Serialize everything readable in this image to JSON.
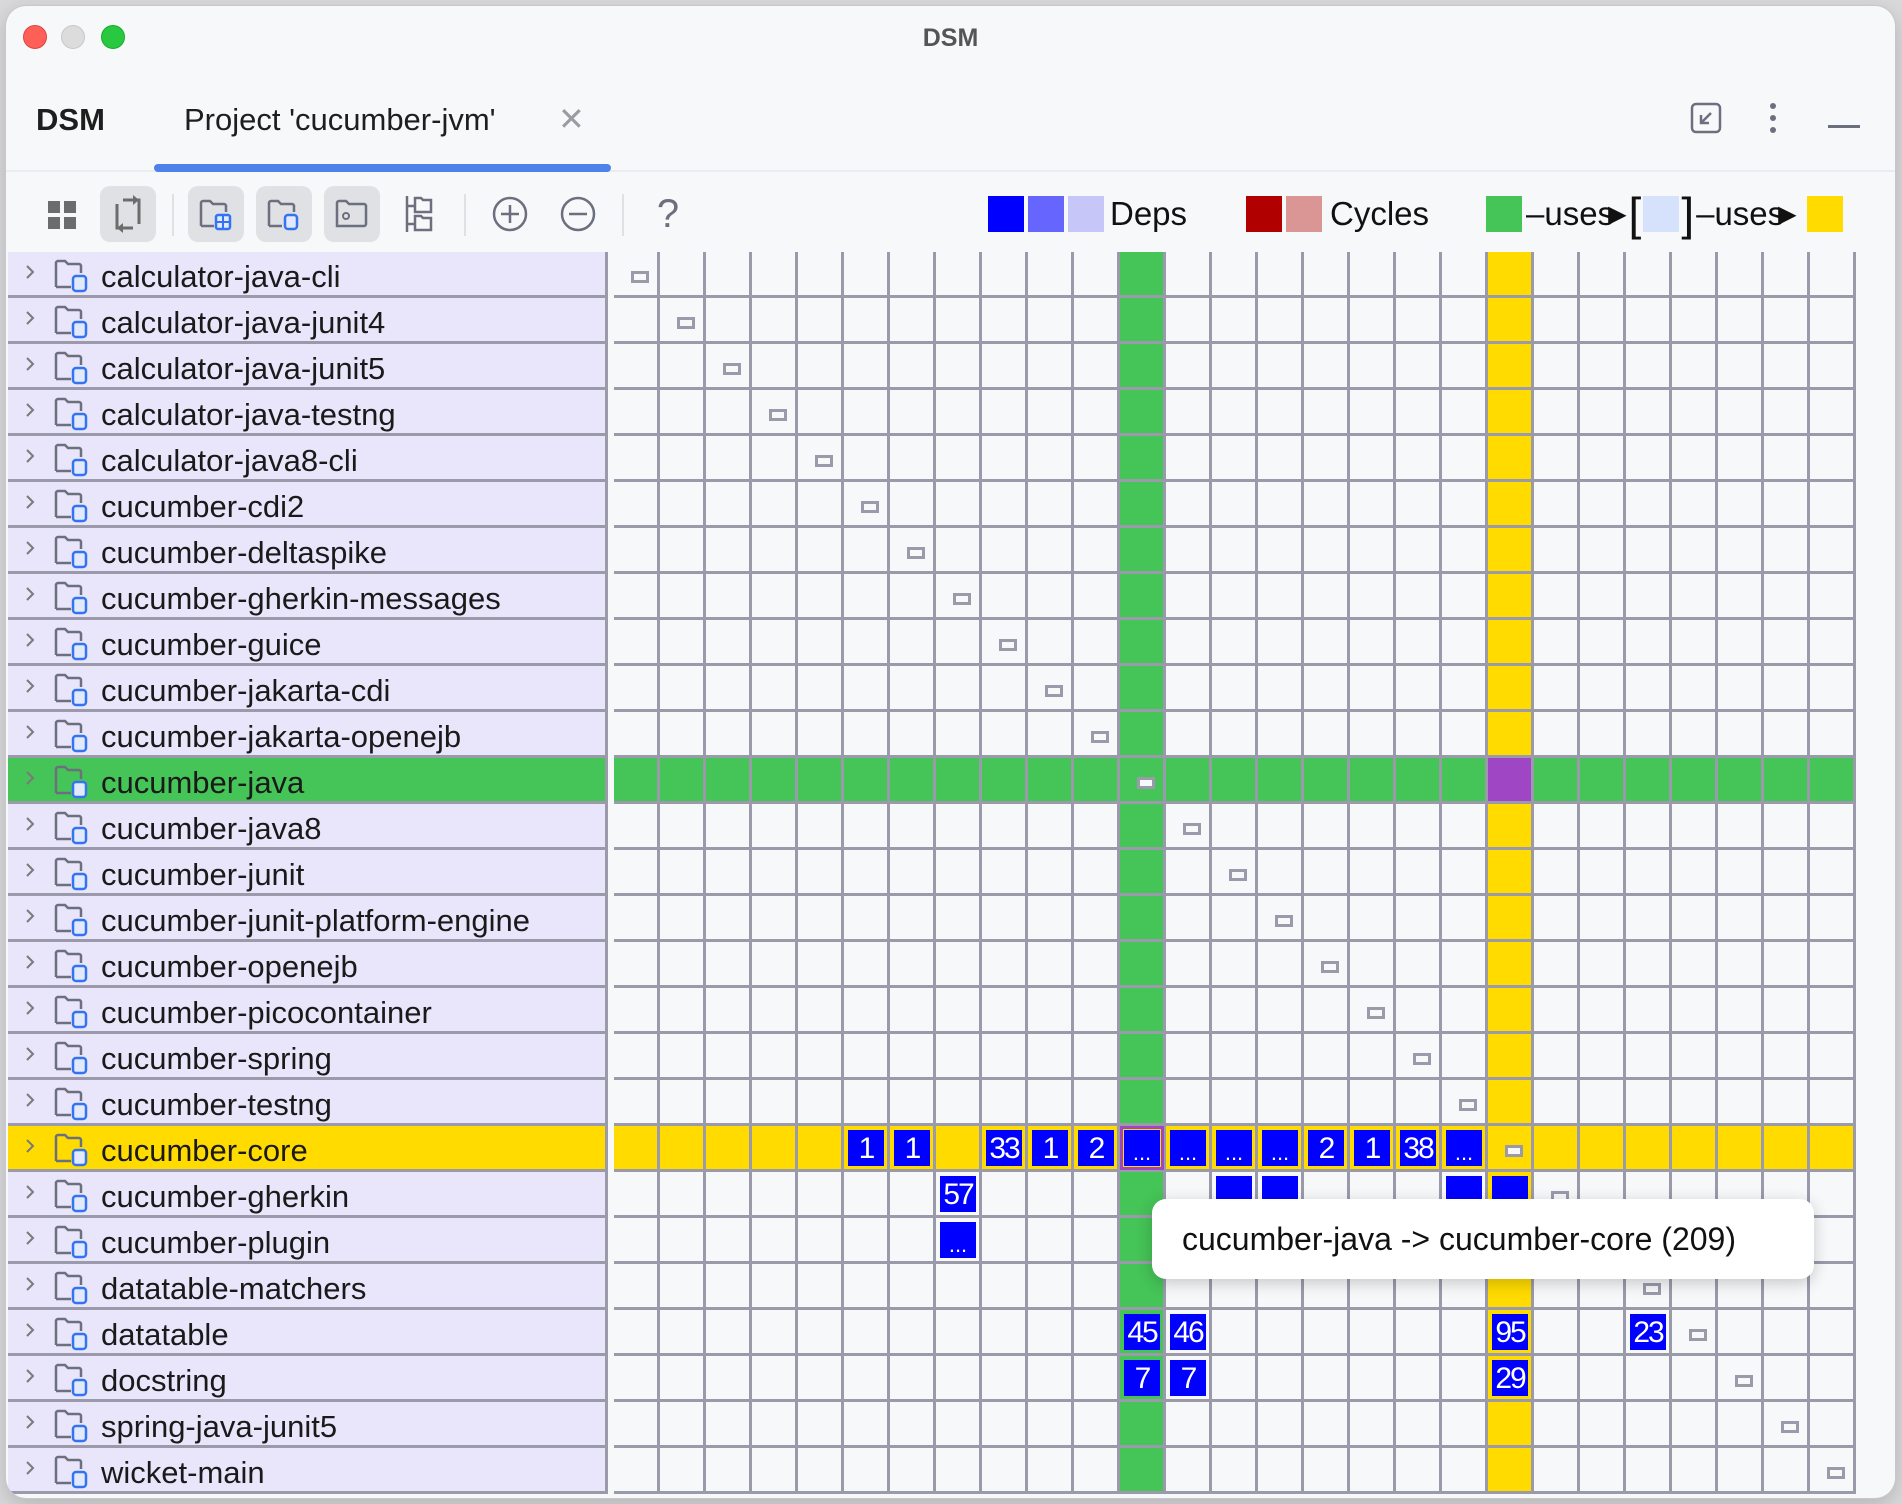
{
  "window": {
    "title": "DSM"
  },
  "tool_window": {
    "title": "DSM",
    "tabs": [
      {
        "label": "Project 'cucumber-jvm'",
        "active": true,
        "closable": true
      }
    ],
    "actions": [
      "restore-icon",
      "more-options-icon",
      "minimize-icon"
    ]
  },
  "toolbar": {
    "buttons": [
      {
        "name": "modules-view-button",
        "icon": "grid-icon",
        "active": false
      },
      {
        "name": "flip-dependencies-button",
        "icon": "flip-icon",
        "active": true
      },
      {
        "name": "show-modules-button",
        "icon": "folder-grid-icon",
        "active": true
      },
      {
        "name": "show-packages-button",
        "icon": "folder-module-icon",
        "active": true
      },
      {
        "name": "show-classes-button",
        "icon": "folder-dot-icon",
        "active": true
      },
      {
        "name": "tree-view-button",
        "icon": "tree-icon",
        "active": false
      },
      {
        "name": "expand-button",
        "icon": "plus-circle-icon",
        "active": false
      },
      {
        "name": "collapse-button",
        "icon": "minus-circle-icon",
        "active": false
      },
      {
        "name": "help-button",
        "icon": "question-icon",
        "active": false
      }
    ],
    "help_label": "?"
  },
  "legend": {
    "deps_label": "Deps",
    "deps_colors": [
      "#0000ff",
      "#6666ff",
      "#c6c6f8"
    ],
    "cycles_label": "Cycles",
    "cycles_colors": [
      "#b00000",
      "#da9595"
    ],
    "uses_label_1": "–uses",
    "uses_label_2": "–uses",
    "uses_from_color": "#45c457",
    "uses_mid_color": "#d6e2fc",
    "uses_to_color": "#ffdb00"
  },
  "colors": {
    "selected_row": "#45c457",
    "dependency_row": "#ffdb00",
    "intersection": "#9f46c4",
    "dep_cell": "#0000ff",
    "label_bg": "#e9e5fa",
    "grid_line": "#9a9aab"
  },
  "matrix": {
    "selected_index": 11,
    "dependency_index": 19,
    "rows": [
      {
        "label": "calculator-java-cli",
        "cells": {}
      },
      {
        "label": "calculator-java-junit4",
        "cells": {}
      },
      {
        "label": "calculator-java-junit5",
        "cells": {}
      },
      {
        "label": "calculator-java-testng",
        "cells": {}
      },
      {
        "label": "calculator-java8-cli",
        "cells": {}
      },
      {
        "label": "cucumber-cdi2",
        "cells": {}
      },
      {
        "label": "cucumber-deltaspike",
        "cells": {}
      },
      {
        "label": "cucumber-gherkin-messages",
        "cells": {}
      },
      {
        "label": "cucumber-guice",
        "cells": {}
      },
      {
        "label": "cucumber-jakarta-cdi",
        "cells": {}
      },
      {
        "label": "cucumber-jakarta-openejb",
        "cells": {}
      },
      {
        "label": "cucumber-java",
        "cells": {}
      },
      {
        "label": "cucumber-java8",
        "cells": {}
      },
      {
        "label": "cucumber-junit",
        "cells": {}
      },
      {
        "label": "cucumber-junit-platform-engine",
        "cells": {}
      },
      {
        "label": "cucumber-openejb",
        "cells": {}
      },
      {
        "label": "cucumber-picocontainer",
        "cells": {}
      },
      {
        "label": "cucumber-spring",
        "cells": {}
      },
      {
        "label": "cucumber-testng",
        "cells": {}
      },
      {
        "label": "cucumber-core",
        "cells": {
          "5": "1",
          "6": "1",
          "8": "33",
          "9": "1",
          "10": "2",
          "11": "...",
          "12": "...",
          "13": "...",
          "14": "...",
          "15": "2",
          "16": "1",
          "17": "38",
          "18": "..."
        }
      },
      {
        "label": "cucumber-gherkin",
        "cells": {
          "7": "57",
          "13": "",
          "14": "",
          "18": "",
          "19": ""
        }
      },
      {
        "label": "cucumber-plugin",
        "cells": {
          "7": "..."
        }
      },
      {
        "label": "datatable-matchers",
        "cells": {}
      },
      {
        "label": "datatable",
        "cells": {
          "11": "45",
          "12": "46",
          "19": "95",
          "22": "23"
        }
      },
      {
        "label": "docstring",
        "cells": {
          "11": "7",
          "12": "7",
          "19": "29"
        }
      },
      {
        "label": "spring-java-junit5",
        "cells": {}
      },
      {
        "label": "wicket-main",
        "cells": {}
      }
    ]
  },
  "tooltip": {
    "text": "cucumber-java -> cucumber-core (209)"
  }
}
